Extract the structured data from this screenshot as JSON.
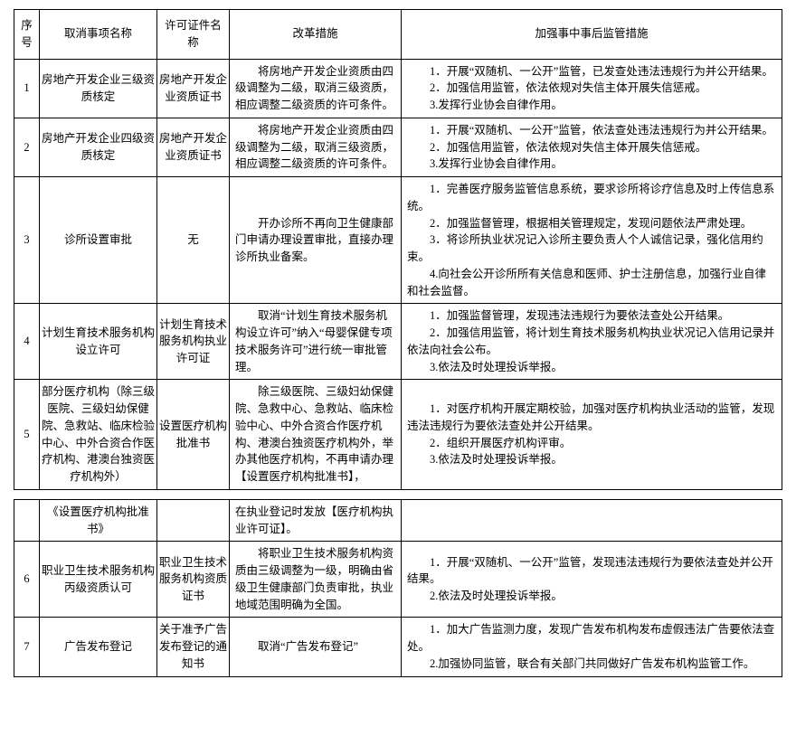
{
  "columns": {
    "seq": "序号",
    "name": "取消事项名称",
    "cert": "许可证件名称",
    "reform": "改革措施",
    "super": "加强事中事后监管措施"
  },
  "rows1": [
    {
      "seq": "1",
      "name": "房地产开发企业三级资质核定",
      "cert": "房地产开发企业资质证书",
      "reform": "　　将房地产开发企业资质由四级调整为二级，取消三级资质，相应调整二级资质的许可条件。",
      "super": "　　1．开展“双随机、一公开”监管，已发查处违法违规行为并公开结果。\n　　2．加强信用监管，依法依规对失信主体开展失信惩戒。\n　　3.发挥行业协会自律作用。"
    },
    {
      "seq": "2",
      "name": "房地产开发企业四级资质核定",
      "cert": "房地产开发企业资质证书",
      "reform": "　　将房地产开发企业资质由四级调整为二级，取消三级资质，相应调整二级资质的许可条件。",
      "super": "　　1．开展“双随机、一公开”监管，依法查处违法违规行为并公开结果。\n　　2．加强信用监管，依法依规对失信主体开展失信惩戒。\n　　3.发挥行业协会自律作用。"
    },
    {
      "seq": "3",
      "name": "诊所设置审批",
      "cert": "无",
      "reform": "　　开办诊所不再向卫生健康部门申请办理设置审批，直接办理诊所执业备案。",
      "super": "　　1．完善医疗服务监管信息系统，要求诊所将诊疗信息及时上传信息系统。\n　　2．加强监督管理，根据相关管理规定，发现问题依法严肃处理。\n　　3．将诊所执业状况记入诊所主要负责人个人诚信记录，强化信用约束。\n　　4.向社会公开诊所所有关信息和医师、护士注册信息，加强行业自律和社会监督。"
    },
    {
      "seq": "4",
      "name": "计划生育技术服务机构设立许可",
      "cert": "计划生育技术服务机构执业许可证",
      "reform": "　　取消“计划生育技术服务机构设立许可”纳入“母婴保健专项技术服务许可”进行统一审批管理。",
      "super": "　　1．加强监督管理，发现违法违规行为要依法查处公开结果。\n　　2．加强信用监管，将计划生育技术服务机构执业状况记入信用记录并依法向社会公布。\n　　3.依法及时处理投诉举报。"
    },
    {
      "seq": "5",
      "name": "部分医疗机构（除三级医院、三级妇幼保健院、急救站、临床检验中心、中外合资合作医疗机构、港澳台独资医疗机构外）",
      "cert": "设置医疗机构批准书",
      "reform": "　　除三级医院、三级妇幼保健院、急救中心、急救站、临床检验中心、中外合资合作医疗机构、港澳台独资医疗机构外，举办其他医疗机构，不再申请办理【设置医疗机构批准书】，",
      "super": "　　1．对医疗机构开展定期校验，加强对医疗机构执业活动的监管，发现违法违规行为要依法查处并公开结果。\n　　2．组织开展医疗机构评审。\n　　3.依法及时处理投诉举报。"
    }
  ],
  "rows2": [
    {
      "seq": "",
      "name": "《设置医疗机构批准书》",
      "cert": "",
      "reform": "在执业登记时发放【医疗机构执业许可证】。",
      "super": ""
    },
    {
      "seq": "6",
      "name": "职业卫生技术服务机构丙级资质认可",
      "cert": "职业卫生技术服务机构资质证书",
      "reform": "　　将职业卫生技术服务机构资质由三级调整为一级，明确由省级卫生健康部门负责审批，执业地域范围明确为全国。",
      "super": "　　1．开展“双随机、一公开”监管，发现违法违规行为要依法查处并公开结果。\n　　2.依法及时处理投诉举报。"
    },
    {
      "seq": "7",
      "name": "广告发布登记",
      "cert": "关于准予广告发布登记的通知书",
      "reform": "　　取消“广告发布登记”",
      "super": "　　1．加大广告监测力度，发现广告发布机构发布虚假违法广告要依法查处。\n　　2.加强协同监管，联合有关部门共同做好广告发布机构监管工作。"
    }
  ],
  "style": {
    "font_family": "SimSun",
    "font_size_pt": 10,
    "border_color": "#000000",
    "background_color": "#ffffff",
    "text_color": "#000000",
    "line_height": 1.5
  }
}
